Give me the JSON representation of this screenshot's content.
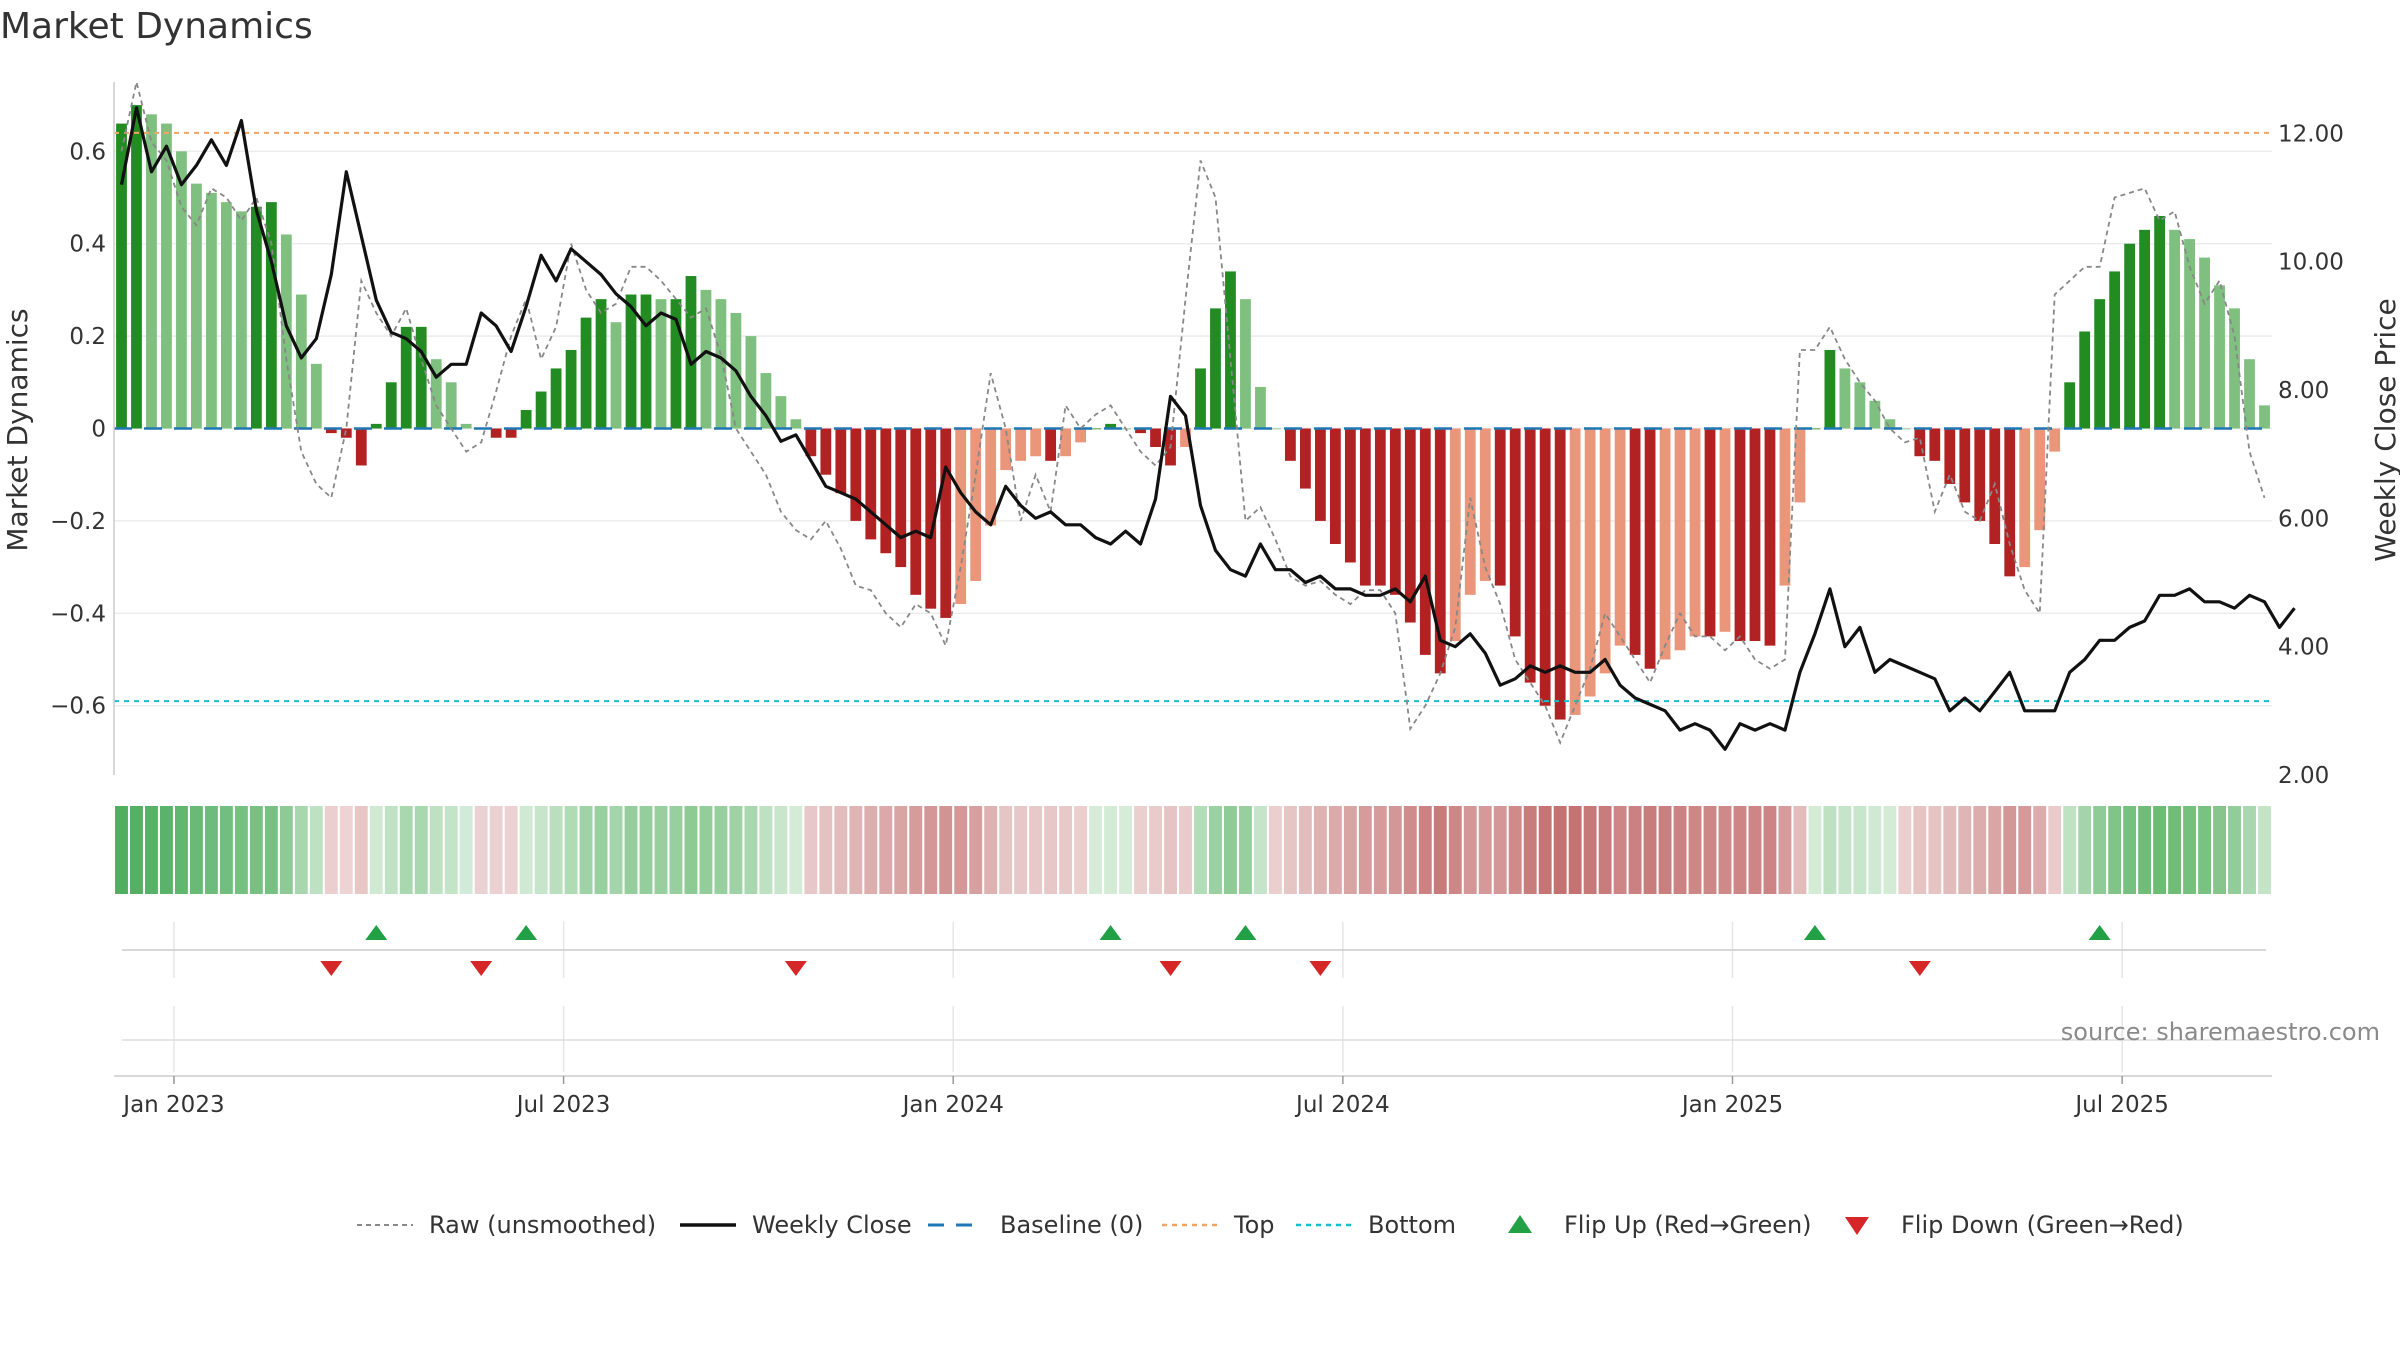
{
  "chart_data": {
    "type": "bar",
    "title": "Market Dynamics",
    "ylabel_left": "Market Dynamics",
    "ylabel_right": "Weekly Close Price",
    "ylim_left": [
      -0.75,
      0.75
    ],
    "ylim_right": [
      2.0,
      12.8
    ],
    "left_ticks": [
      "0.6",
      "0.4",
      "0.2",
      "0",
      "−0.2",
      "−0.4",
      "−0.6"
    ],
    "left_tick_values": [
      0.6,
      0.4,
      0.2,
      0,
      -0.2,
      -0.4,
      -0.6
    ],
    "right_ticks": [
      "12.00",
      "10.00",
      "8.00",
      "6.00",
      "4.00",
      "2.00"
    ],
    "right_tick_values": [
      12,
      10,
      8,
      6,
      4,
      2
    ],
    "x_ticks": [
      "Jan 2023",
      "Jul 2023",
      "Jan 2024",
      "Jul 2024",
      "Jan 2025",
      "Jul 2025"
    ],
    "top_level": 0.64,
    "bottom_level": -0.59,
    "baseline": 0,
    "grid": true,
    "legend_position": "bottom",
    "legend": [
      "Raw (unsmoothed)",
      "Weekly Close",
      "Baseline (0)",
      "Top",
      "Bottom",
      "Flip Up (Red→Green)",
      "Flip Down (Green→Red)"
    ],
    "colors": {
      "strong_green": "#228b22",
      "light_green": "#7fbf7f",
      "strong_red": "#b22222",
      "light_red": "#e9967a",
      "close": "#111111",
      "raw": "#888888",
      "baseline": "#1f77b4",
      "top": "#f4a460",
      "bottom": "#17becf",
      "flip_up": "#22a045",
      "flip_down": "#d62728"
    },
    "momentum": [
      0.66,
      0.7,
      0.68,
      0.66,
      0.6,
      0.53,
      0.51,
      0.49,
      0.47,
      0.48,
      0.49,
      0.42,
      0.29,
      0.14,
      -0.01,
      -0.02,
      -0.08,
      0.01,
      0.1,
      0.22,
      0.22,
      0.15,
      0.1,
      0.01,
      0.0,
      -0.02,
      -0.02,
      0.04,
      0.08,
      0.13,
      0.17,
      0.24,
      0.28,
      0.23,
      0.29,
      0.29,
      0.28,
      0.28,
      0.33,
      0.3,
      0.28,
      0.25,
      0.2,
      0.12,
      0.07,
      0.02,
      -0.06,
      -0.1,
      -0.14,
      -0.2,
      -0.24,
      -0.27,
      -0.3,
      -0.36,
      -0.39,
      -0.41,
      -0.38,
      -0.33,
      -0.21,
      -0.09,
      -0.07,
      -0.06,
      -0.07,
      -0.06,
      -0.03,
      0.0,
      0.01,
      0.0,
      -0.01,
      -0.04,
      -0.08,
      -0.04,
      0.13,
      0.26,
      0.34,
      0.28,
      0.09,
      0.0,
      -0.07,
      -0.13,
      -0.2,
      -0.25,
      -0.29,
      -0.34,
      -0.34,
      -0.36,
      -0.42,
      -0.49,
      -0.53,
      -0.46,
      -0.36,
      -0.33,
      -0.34,
      -0.45,
      -0.55,
      -0.6,
      -0.63,
      -0.62,
      -0.58,
      -0.53,
      -0.47,
      -0.49,
      -0.52,
      -0.5,
      -0.48,
      -0.45,
      -0.45,
      -0.44,
      -0.46,
      -0.46,
      -0.47,
      -0.34,
      -0.16,
      0.0,
      0.17,
      0.13,
      0.1,
      0.06,
      0.02,
      0.0,
      -0.06,
      -0.07,
      -0.12,
      -0.16,
      -0.2,
      -0.25,
      -0.32,
      -0.3,
      -0.22,
      -0.05,
      0.1,
      0.21,
      0.28,
      0.34,
      0.4,
      0.43,
      0.46,
      0.43,
      0.41,
      0.37,
      0.31,
      0.26,
      0.15,
      0.05
    ],
    "weekly_close": [
      11.2,
      12.4,
      11.4,
      11.8,
      11.2,
      11.5,
      11.9,
      11.5,
      12.2,
      10.8,
      10.0,
      9.0,
      8.5,
      8.8,
      9.8,
      11.4,
      10.4,
      9.4,
      8.9,
      8.8,
      8.6,
      8.2,
      8.4,
      8.4,
      9.2,
      9.0,
      8.6,
      9.3,
      10.1,
      9.7,
      10.2,
      10.0,
      9.8,
      9.5,
      9.3,
      9.0,
      9.2,
      9.1,
      8.4,
      8.6,
      8.5,
      8.3,
      7.9,
      7.6,
      7.2,
      7.3,
      6.9,
      6.5,
      6.4,
      6.3,
      6.1,
      5.9,
      5.7,
      5.8,
      5.7,
      6.8,
      6.4,
      6.1,
      5.9,
      6.5,
      6.2,
      6.0,
      6.1,
      5.9,
      5.9,
      5.7,
      5.6,
      5.8,
      5.6,
      6.3,
      7.9,
      7.6,
      6.2,
      5.5,
      5.2,
      5.1,
      5.6,
      5.2,
      5.2,
      5.0,
      5.1,
      4.9,
      4.9,
      4.8,
      4.8,
      4.9,
      4.7,
      5.1,
      4.1,
      4.0,
      4.2,
      3.9,
      3.4,
      3.5,
      3.7,
      3.6,
      3.7,
      3.6,
      3.6,
      3.8,
      3.4,
      3.2,
      3.1,
      3.0,
      2.7,
      2.8,
      2.7,
      2.4,
      2.8,
      2.7,
      2.8,
      2.7,
      3.6,
      4.2,
      4.9,
      4.0,
      4.3,
      3.6,
      3.8,
      3.7,
      3.6,
      3.5,
      3.0,
      3.2,
      3.0,
      3.3,
      3.6,
      3.0,
      3.0,
      3.0,
      3.6,
      3.8,
      4.1,
      4.1,
      4.3,
      4.4,
      4.8,
      4.8,
      4.9,
      4.7,
      4.7,
      4.6,
      4.8,
      4.7,
      4.3,
      4.6
    ],
    "raw": [
      0.6,
      0.75,
      0.62,
      0.58,
      0.48,
      0.44,
      0.52,
      0.5,
      0.45,
      0.5,
      0.4,
      0.15,
      -0.05,
      -0.12,
      -0.15,
      0.0,
      0.32,
      0.25,
      0.2,
      0.26,
      0.15,
      0.05,
      0.0,
      -0.05,
      -0.03,
      0.08,
      0.2,
      0.28,
      0.15,
      0.22,
      0.4,
      0.3,
      0.25,
      0.27,
      0.35,
      0.35,
      0.32,
      0.28,
      0.24,
      0.26,
      0.16,
      0.0,
      -0.05,
      -0.1,
      -0.18,
      -0.22,
      -0.24,
      -0.2,
      -0.26,
      -0.34,
      -0.35,
      -0.4,
      -0.43,
      -0.38,
      -0.4,
      -0.47,
      -0.3,
      -0.1,
      0.12,
      0.0,
      -0.2,
      -0.1,
      -0.18,
      0.05,
      0.0,
      0.03,
      0.05,
      0.0,
      -0.05,
      -0.08,
      -0.04,
      0.28,
      0.58,
      0.5,
      0.15,
      -0.2,
      -0.17,
      -0.24,
      -0.32,
      -0.34,
      -0.33,
      -0.36,
      -0.38,
      -0.35,
      -0.35,
      -0.4,
      -0.65,
      -0.6,
      -0.53,
      -0.43,
      -0.15,
      -0.3,
      -0.38,
      -0.5,
      -0.55,
      -0.6,
      -0.68,
      -0.6,
      -0.52,
      -0.4,
      -0.45,
      -0.5,
      -0.55,
      -0.47,
      -0.4,
      -0.45,
      -0.45,
      -0.48,
      -0.45,
      -0.5,
      -0.52,
      -0.5,
      0.17,
      0.17,
      0.22,
      0.15,
      0.1,
      0.06,
      0.0,
      -0.03,
      -0.02,
      -0.18,
      -0.1,
      -0.18,
      -0.2,
      -0.12,
      -0.25,
      -0.35,
      -0.4,
      0.29,
      0.32,
      0.35,
      0.35,
      0.5,
      0.51,
      0.52,
      0.45,
      0.47,
      0.35,
      0.27,
      0.32,
      0.2,
      -0.05,
      -0.15
    ]
  },
  "heat_strip": {
    "colors": [
      "#4fae5f",
      "#55b064",
      "#57b167",
      "#5ab36a",
      "#61b670",
      "#68ba76",
      "#6ebc7b",
      "#72be7e",
      "#76c081",
      "#78c183",
      "#76c081",
      "#8dca96",
      "#a8d6ae",
      "#bfe1c3",
      "#ebcfcf",
      "#edd3d3",
      "#e8c6c6",
      "#cfe9d2",
      "#c0e2c4",
      "#a9d7af",
      "#a9d7af",
      "#bde1c1",
      "#c4e4c8",
      "#d2eada",
      "#ebd2d2",
      "#ebd1d1",
      "#ebd1d1",
      "#cfe9d3",
      "#c6e5ca",
      "#b9dfbe",
      "#b0dbb5",
      "#a0d2a7",
      "#97cf9e",
      "#a4d4aa",
      "#95ce9c",
      "#95ce9c",
      "#97cf9e",
      "#97cf9e",
      "#8dca94",
      "#93cd9a",
      "#97cf9e",
      "#9ed1a4",
      "#a9d7af",
      "#bde1c1",
      "#c9e6cd",
      "#d4ebd6",
      "#e7c7c7",
      "#e5c2c2",
      "#e2bcbc",
      "#dfb4b4",
      "#ddaeae",
      "#dba9a9",
      "#d9a4a4",
      "#d69b9b",
      "#d49696",
      "#d29393",
      "#d59898",
      "#d7a0a0",
      "#dfb2b2",
      "#e6c5c5",
      "#e7c7c7",
      "#e8c9c9",
      "#e7c7c7",
      "#e8c9c9",
      "#ebcece",
      "#d6ecd9",
      "#d4ebd6",
      "#d6ecd9",
      "#ebcfcf",
      "#e9cbcb",
      "#e6c4c4",
      "#e9cbcb",
      "#b3dcb8",
      "#9bd0a2",
      "#8fcb96",
      "#97cf9e",
      "#c5e4c9",
      "#ebcfcf",
      "#e6c5c5",
      "#e2bdbd",
      "#dfb2b2",
      "#dcaaaa",
      "#d9a4a4",
      "#d69b9b",
      "#d69b9b",
      "#d49797",
      "#d08c8c",
      "#cc8282",
      "#c97b7b",
      "#ce8787",
      "#d49696",
      "#d59999",
      "#d49696",
      "#cf8a8a",
      "#c97c7c",
      "#c67575",
      "#c47171",
      "#c57272",
      "#c77878",
      "#c97c7c",
      "#cd8585",
      "#cb8181",
      "#c97c7c",
      "#ca7f7f",
      "#cc8282",
      "#ce8787",
      "#ce8787",
      "#cf8989",
      "#cd8585",
      "#cd8585",
      "#cd8484",
      "#d69b9b",
      "#e2bbbb",
      "#d4ebd6",
      "#bde1c1",
      "#c5e4c9",
      "#c8e6cc",
      "#cfe9d2",
      "#d4ebd6",
      "#ebcfcf",
      "#e6c4c4",
      "#e6c4c4",
      "#e2bcbc",
      "#dfb5b5",
      "#dcadad",
      "#d9a5a5",
      "#d49797",
      "#d59999",
      "#dcabab",
      "#e9cbcb",
      "#bfe2c3",
      "#a4d4aa",
      "#8fcb96",
      "#80c488",
      "#77c07f",
      "#70bd78",
      "#6cbc74",
      "#70bd78",
      "#75c07c",
      "#7ac282",
      "#86c68d",
      "#92cc98",
      "#a9d7af",
      "#c4e4c8"
    ]
  },
  "flips": {
    "up": [
      17,
      27,
      66,
      75,
      113,
      132
    ],
    "down": [
      14,
      24,
      45,
      70,
      80,
      120
    ]
  },
  "source_text": "source: sharemaestro.com"
}
